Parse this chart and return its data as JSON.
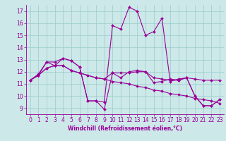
{
  "bg_color": "#cce8e8",
  "line_color": "#990099",
  "grid_color": "#99cccc",
  "xlabel": "Windchill (Refroidissement éolien,°C)",
  "xlim": [
    -0.5,
    23.5
  ],
  "ylim": [
    8.5,
    17.5
  ],
  "yticks": [
    9,
    10,
    11,
    12,
    13,
    14,
    15,
    16,
    17
  ],
  "xticks": [
    0,
    1,
    2,
    3,
    4,
    5,
    6,
    7,
    8,
    9,
    10,
    11,
    12,
    13,
    14,
    15,
    16,
    17,
    18,
    19,
    20,
    21,
    22,
    23
  ],
  "series": [
    [
      11.3,
      11.8,
      12.8,
      12.8,
      13.1,
      12.9,
      12.4,
      9.6,
      9.6,
      8.9,
      11.9,
      11.5,
      12.0,
      12.1,
      12.0,
      11.1,
      11.2,
      11.4,
      11.3,
      11.5,
      10.0,
      9.2,
      9.2,
      9.7
    ],
    [
      11.3,
      11.7,
      12.3,
      12.5,
      12.5,
      12.1,
      11.9,
      11.7,
      11.5,
      11.4,
      11.2,
      11.1,
      11.0,
      10.8,
      10.7,
      10.5,
      10.4,
      10.2,
      10.1,
      10.0,
      9.8,
      9.7,
      9.6,
      9.4
    ],
    [
      11.3,
      11.7,
      12.3,
      12.5,
      12.5,
      12.1,
      11.9,
      11.7,
      11.5,
      11.4,
      11.9,
      11.9,
      11.9,
      12.0,
      12.0,
      11.5,
      11.4,
      11.3,
      11.3,
      11.5,
      11.4,
      11.3,
      11.3,
      11.3
    ],
    [
      11.3,
      11.7,
      12.8,
      12.5,
      13.1,
      12.9,
      12.4,
      9.6,
      9.6,
      9.5,
      15.8,
      15.5,
      17.3,
      17.0,
      15.0,
      15.3,
      16.4,
      11.2,
      11.4,
      11.5,
      10.0,
      9.2,
      9.2,
      9.7
    ]
  ],
  "tick_fontsize": 5.5,
  "xlabel_fontsize": 5.5,
  "marker_size": 2.0,
  "linewidth": 0.8
}
